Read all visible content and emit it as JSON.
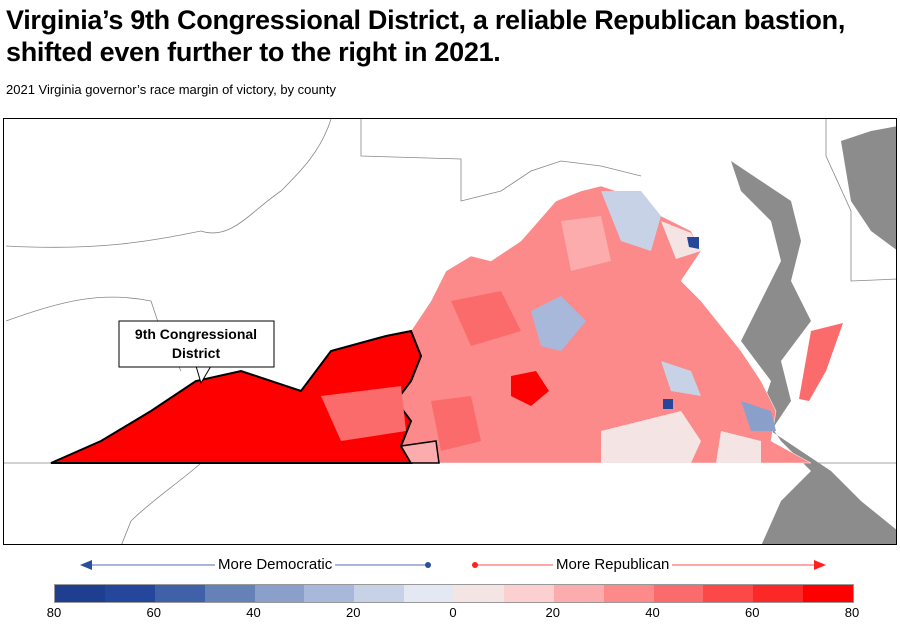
{
  "title": "Virginia’s 9th Congressional District, a reliable Republican bastion, shifted even further to the right in 2021.",
  "subtitle": "2021 Virginia governor’s race margin of victory, by county",
  "map": {
    "district_label": "9th Congressional District",
    "district_label_line1": "9th Congressional",
    "district_label_line2": "District",
    "water_color": "#8c8c8c",
    "district_color": "#ff0000"
  },
  "legend": {
    "democratic_label": "More Democratic",
    "republican_label": "More Republican",
    "democratic_color": "#2a4fa0",
    "republican_color": "#ff2020",
    "ticks": [
      "80",
      "60",
      "40",
      "20",
      "0",
      "20",
      "40",
      "60",
      "80"
    ],
    "bins": [
      "#1f3e8f",
      "#24479b",
      "#4060a8",
      "#6680b8",
      "#8a9fca",
      "#a8b8db",
      "#c8d2e6",
      "#e3e8f2",
      "#f5e4e4",
      "#fcd0d0",
      "#fcacac",
      "#fc8a8a",
      "#fc6b6b",
      "#fc4848",
      "#fc2828",
      "#ff0000"
    ]
  }
}
